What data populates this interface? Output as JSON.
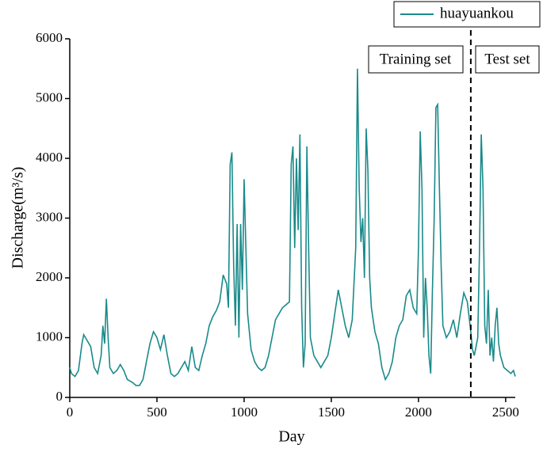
{
  "chart_data": {
    "type": "line",
    "x_label": "Day",
    "y_label": "Discharge(m³/s)",
    "annotations": [
      "Training set",
      "Test set"
    ],
    "vline": 2300,
    "xlim": [
      0,
      2555
    ],
    "ylim": [
      0,
      6000
    ],
    "xticks": [
      0,
      500,
      1000,
      1500,
      2000,
      2500
    ],
    "yticks": [
      0,
      1000,
      2000,
      3000,
      4000,
      5000,
      6000
    ],
    "legend": "top-right",
    "x": [
      0,
      10,
      30,
      50,
      70,
      80,
      100,
      120,
      140,
      160,
      180,
      190,
      200,
      210,
      220,
      230,
      250,
      270,
      290,
      310,
      330,
      360,
      380,
      400,
      420,
      440,
      460,
      480,
      500,
      520,
      540,
      560,
      580,
      600,
      620,
      640,
      660,
      680,
      700,
      720,
      740,
      760,
      780,
      800,
      820,
      840,
      860,
      880,
      900,
      910,
      920,
      930,
      940,
      950,
      960,
      970,
      980,
      990,
      1000,
      1010,
      1020,
      1040,
      1060,
      1080,
      1100,
      1120,
      1140,
      1160,
      1180,
      1200,
      1220,
      1240,
      1260,
      1270,
      1280,
      1290,
      1300,
      1310,
      1320,
      1330,
      1340,
      1350,
      1360,
      1370,
      1380,
      1400,
      1420,
      1440,
      1460,
      1480,
      1500,
      1520,
      1540,
      1560,
      1580,
      1600,
      1620,
      1640,
      1650,
      1660,
      1670,
      1680,
      1690,
      1700,
      1710,
      1720,
      1730,
      1750,
      1770,
      1790,
      1810,
      1830,
      1850,
      1870,
      1890,
      1910,
      1930,
      1950,
      1970,
      1990,
      2000,
      2010,
      2020,
      2030,
      2040,
      2050,
      2060,
      2070,
      2080,
      2090,
      2100,
      2110,
      2120,
      2130,
      2140,
      2160,
      2180,
      2200,
      2220,
      2240,
      2260,
      2280,
      2300,
      2310,
      2320,
      2340,
      2350,
      2360,
      2370,
      2380,
      2390,
      2400,
      2410,
      2420,
      2430,
      2440,
      2450,
      2460,
      2470,
      2490,
      2510,
      2530,
      2545,
      2555
    ],
    "series": [
      {
        "name": "huayuankou",
        "color": "#1a8a8a",
        "values": [
          500,
          400,
          350,
          450,
          900,
          1050,
          950,
          850,
          500,
          400,
          700,
          1200,
          900,
          1650,
          1000,
          500,
          400,
          450,
          550,
          450,
          300,
          250,
          200,
          200,
          300,
          600,
          900,
          1100,
          1000,
          800,
          1050,
          700,
          400,
          350,
          400,
          500,
          600,
          450,
          850,
          500,
          450,
          700,
          900,
          1200,
          1350,
          1450,
          1600,
          2050,
          1900,
          1500,
          3900,
          4100,
          2200,
          1200,
          2900,
          1000,
          2900,
          1800,
          3650,
          2500,
          1400,
          800,
          600,
          500,
          450,
          500,
          700,
          1000,
          1300,
          1400,
          1500,
          1550,
          1600,
          3900,
          4200,
          2500,
          4000,
          2800,
          4400,
          1500,
          500,
          900,
          4200,
          2500,
          1000,
          700,
          600,
          500,
          600,
          700,
          1000,
          1400,
          1800,
          1500,
          1200,
          1000,
          1300,
          2500,
          5500,
          3500,
          2600,
          3000,
          2000,
          4500,
          3800,
          2000,
          1500,
          1100,
          900,
          500,
          300,
          400,
          600,
          1000,
          1200,
          1300,
          1700,
          1800,
          1500,
          1400,
          2500,
          4450,
          3500,
          1000,
          2000,
          1500,
          700,
          400,
          1800,
          3000,
          4850,
          4900,
          3500,
          2200,
          1200,
          1000,
          1100,
          1300,
          1000,
          1400,
          1750,
          1600,
          1100,
          800,
          700,
          1000,
          2500,
          4400,
          3500,
          1200,
          900,
          1800,
          700,
          1000,
          600,
          1200,
          1500,
          900,
          700,
          500,
          450,
          400,
          450,
          350
        ]
      }
    ]
  }
}
